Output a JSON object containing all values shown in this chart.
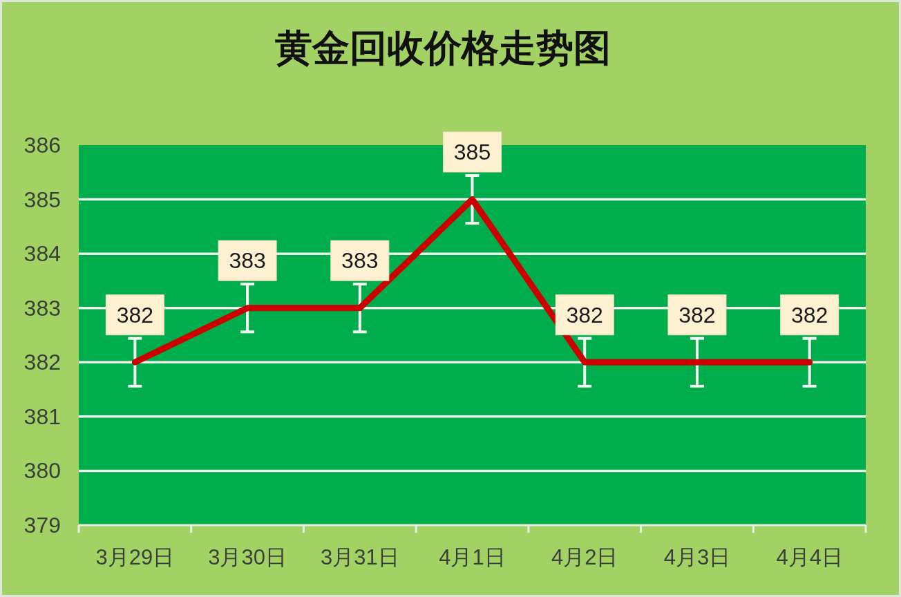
{
  "chart_data": {
    "type": "line",
    "title": "黄金回收价格走势图",
    "categories": [
      "3月29日",
      "3月30日",
      "3月31日",
      "4月1日",
      "4月2日",
      "4月3日",
      "4月4日"
    ],
    "series": [
      {
        "color": "#cc0000",
        "values": [
          382,
          383,
          383,
          385,
          382,
          382,
          382
        ],
        "errors": [
          0.44,
          0.44,
          0.44,
          0.44,
          0.44,
          0.44,
          0.44
        ]
      }
    ],
    "ylim": [
      379,
      386
    ],
    "yticks": [
      379,
      380,
      381,
      382,
      383,
      384,
      385,
      386
    ],
    "grid": "y",
    "marker": "none",
    "line_style": "solid",
    "data_labels": true
  }
}
